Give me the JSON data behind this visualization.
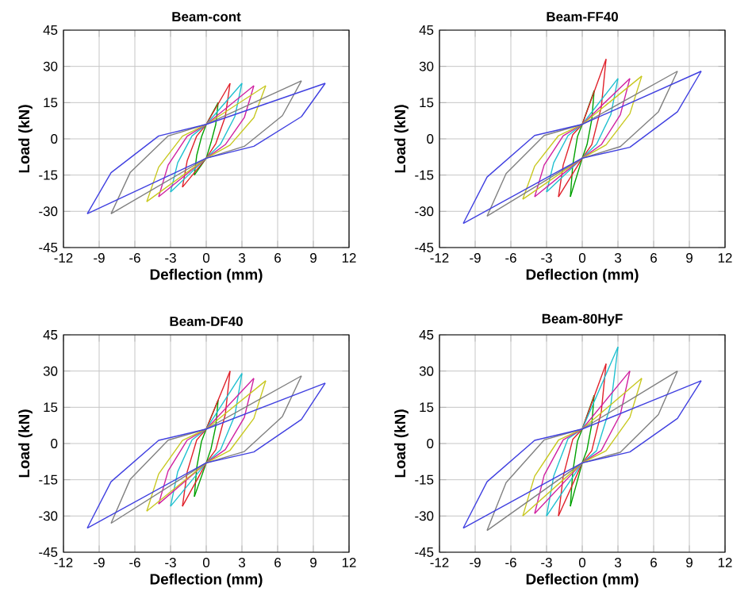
{
  "chart_data": [
    {
      "type": "line",
      "title": "Beam-cont",
      "xlabel": "Deflection (mm)",
      "ylabel": "Load (kN)",
      "xlim": [
        -12,
        12
      ],
      "ylim": [
        -45,
        45
      ],
      "xticks": [
        -12,
        -9,
        -6,
        -3,
        0,
        3,
        6,
        9,
        12
      ],
      "yticks": [
        -45,
        -30,
        -15,
        0,
        15,
        30,
        45
      ],
      "grid": true,
      "series": [
        {
          "color": "#00a000",
          "x": [
            -1,
            -0.8,
            -0.4,
            0,
            1
          ],
          "values": [
            -15,
            -6.8,
            0.8,
            6,
            15
          ]
        },
        {
          "color": "#00a000",
          "x": [
            -1,
            0,
            0.4,
            0.8,
            1
          ],
          "values": [
            -15,
            -8,
            -1.5,
            6,
            15
          ]
        },
        {
          "color": "#e0202a",
          "x": [
            -2,
            -1.6,
            -0.8,
            0,
            2
          ],
          "values": [
            -20,
            -9,
            1.2,
            6,
            23
          ]
        },
        {
          "color": "#e0202a",
          "x": [
            -2,
            0,
            0.8,
            1.6,
            2
          ],
          "values": [
            -20,
            -8,
            -2,
            9.2,
            23
          ]
        },
        {
          "color": "#20c0d0",
          "x": [
            -3,
            -2.4,
            -1.2,
            0,
            3
          ],
          "values": [
            -22,
            -9.9,
            1.2,
            6,
            23
          ]
        },
        {
          "color": "#20c0d0",
          "x": [
            -3,
            0,
            1.2,
            2.4,
            3
          ],
          "values": [
            -22,
            -8,
            -2.2,
            9.2,
            23
          ]
        },
        {
          "color": "#d020a0",
          "x": [
            -4,
            -3.2,
            -1.6,
            0,
            4
          ],
          "values": [
            -24,
            -10.8,
            1.1,
            6,
            22
          ]
        },
        {
          "color": "#d020a0",
          "x": [
            -4,
            0,
            1.6,
            3.2,
            4
          ],
          "values": [
            -24,
            -8,
            -2.4,
            8.8,
            22
          ]
        },
        {
          "color": "#c8c820",
          "x": [
            -5,
            -4,
            -2,
            0,
            5
          ],
          "values": [
            -26,
            -11.7,
            1.1,
            6,
            22
          ]
        },
        {
          "color": "#c8c820",
          "x": [
            -5,
            0,
            2,
            4,
            5
          ],
          "values": [
            -26,
            -8,
            -2.6,
            8.8,
            22
          ]
        },
        {
          "color": "#808080",
          "x": [
            -8,
            -6.4,
            -3.2,
            0,
            8
          ],
          "values": [
            -31,
            -14,
            1.2,
            6,
            24
          ]
        },
        {
          "color": "#808080",
          "x": [
            -8,
            0,
            3.2,
            6.4,
            8
          ],
          "values": [
            -31,
            -8,
            -3.1,
            9.6,
            24
          ]
        },
        {
          "color": "#4040e0",
          "x": [
            -10,
            -8,
            -4,
            0,
            10
          ],
          "values": [
            -31,
            -14,
            1.2,
            6,
            23
          ]
        },
        {
          "color": "#4040e0",
          "x": [
            -10,
            0,
            4,
            8,
            10
          ],
          "values": [
            -31,
            -8,
            -3.1,
            9.2,
            23
          ]
        }
      ]
    },
    {
      "type": "line",
      "title": "Beam-FF40",
      "xlabel": "Deflection (mm)",
      "ylabel": "Load (kN)",
      "xlim": [
        -12,
        12
      ],
      "ylim": [
        -45,
        45
      ],
      "xticks": [
        -12,
        -9,
        -6,
        -3,
        0,
        3,
        6,
        9,
        12
      ],
      "yticks": [
        -45,
        -30,
        -15,
        0,
        15,
        30,
        45
      ],
      "grid": true,
      "series": [
        {
          "color": "#00a000",
          "x": [
            -1,
            -0.8,
            -0.4,
            0,
            1
          ],
          "values": [
            -24,
            -10.8,
            1,
            6,
            20
          ]
        },
        {
          "color": "#00a000",
          "x": [
            -1,
            0,
            0.4,
            0.8,
            1
          ],
          "values": [
            -24,
            -8,
            -2.4,
            8,
            20
          ]
        },
        {
          "color": "#e0202a",
          "x": [
            -2,
            -1.6,
            -0.8,
            0,
            2
          ],
          "values": [
            -24,
            -10.8,
            1.7,
            6,
            33
          ]
        },
        {
          "color": "#e0202a",
          "x": [
            -2,
            0,
            0.8,
            1.6,
            2
          ],
          "values": [
            -24,
            -8,
            -2.4,
            13.2,
            33
          ]
        },
        {
          "color": "#20c0d0",
          "x": [
            -3,
            -2.4,
            -1.2,
            0,
            3
          ],
          "values": [
            -22,
            -9.9,
            1.3,
            6,
            25
          ]
        },
        {
          "color": "#20c0d0",
          "x": [
            -3,
            0,
            1.2,
            2.4,
            3
          ],
          "values": [
            -22,
            -8,
            -2.2,
            10,
            25
          ]
        },
        {
          "color": "#d020a0",
          "x": [
            -4,
            -3.2,
            -1.6,
            0,
            4
          ],
          "values": [
            -24,
            -10.8,
            1.3,
            6,
            25
          ]
        },
        {
          "color": "#d020a0",
          "x": [
            -4,
            0,
            1.6,
            3.2,
            4
          ],
          "values": [
            -24,
            -8,
            -2.4,
            10,
            25
          ]
        },
        {
          "color": "#c8c820",
          "x": [
            -5,
            -4,
            -2,
            0,
            5
          ],
          "values": [
            -25,
            -11.3,
            1.3,
            6,
            26
          ]
        },
        {
          "color": "#c8c820",
          "x": [
            -5,
            0,
            2,
            4,
            5
          ],
          "values": [
            -25,
            -8,
            -2.5,
            10.4,
            26
          ]
        },
        {
          "color": "#808080",
          "x": [
            -8,
            -6.4,
            -3.2,
            0,
            8
          ],
          "values": [
            -32,
            -14.4,
            1.4,
            6,
            28
          ]
        },
        {
          "color": "#808080",
          "x": [
            -8,
            0,
            3.2,
            6.4,
            8
          ],
          "values": [
            -32,
            -8,
            -3.2,
            11.2,
            28
          ]
        },
        {
          "color": "#4040e0",
          "x": [
            -10,
            -8,
            -4,
            0,
            10
          ],
          "values": [
            -35,
            -15.8,
            1.4,
            6,
            28
          ]
        },
        {
          "color": "#4040e0",
          "x": [
            -10,
            0,
            4,
            8,
            10
          ],
          "values": [
            -35,
            -8,
            -3.5,
            11.2,
            28
          ]
        }
      ]
    },
    {
      "type": "line",
      "title": "Beam-DF40",
      "xlabel": "Deflection (mm)",
      "ylabel": "Load (kN)",
      "xlim": [
        -12,
        12
      ],
      "ylim": [
        -45,
        45
      ],
      "xticks": [
        -12,
        -9,
        -6,
        -3,
        0,
        3,
        6,
        9,
        12
      ],
      "yticks": [
        -45,
        -30,
        -15,
        0,
        15,
        30,
        45
      ],
      "grid": true,
      "series": [
        {
          "color": "#00a000",
          "x": [
            -1,
            -0.8,
            -0.4,
            0,
            1
          ],
          "values": [
            -22,
            -9.9,
            0.9,
            6,
            18
          ]
        },
        {
          "color": "#00a000",
          "x": [
            -1,
            0,
            0.4,
            0.8,
            1
          ],
          "values": [
            -22,
            -8,
            -2.2,
            7.2,
            18
          ]
        },
        {
          "color": "#e0202a",
          "x": [
            -2,
            -1.6,
            -0.8,
            0,
            2
          ],
          "values": [
            -26,
            -11.7,
            1.5,
            6,
            30
          ]
        },
        {
          "color": "#e0202a",
          "x": [
            -2,
            0,
            0.8,
            1.6,
            2
          ],
          "values": [
            -26,
            -8,
            -2.6,
            12,
            30
          ]
        },
        {
          "color": "#20c0d0",
          "x": [
            -3,
            -2.4,
            -1.2,
            0,
            3
          ],
          "values": [
            -26,
            -11.7,
            1.5,
            6,
            29
          ]
        },
        {
          "color": "#20c0d0",
          "x": [
            -3,
            0,
            1.2,
            2.4,
            3
          ],
          "values": [
            -26,
            -8,
            -2.6,
            11.6,
            29
          ]
        },
        {
          "color": "#d020a0",
          "x": [
            -4,
            -3.2,
            -1.6,
            0,
            4
          ],
          "values": [
            -25,
            -11.3,
            1.4,
            6,
            27
          ]
        },
        {
          "color": "#d020a0",
          "x": [
            -4,
            0,
            1.6,
            3.2,
            4
          ],
          "values": [
            -25,
            -8,
            -2.5,
            10.8,
            27
          ]
        },
        {
          "color": "#c8c820",
          "x": [
            -5,
            -4,
            -2,
            0,
            5
          ],
          "values": [
            -28,
            -12.6,
            1.3,
            6,
            26
          ]
        },
        {
          "color": "#c8c820",
          "x": [
            -5,
            0,
            2,
            4,
            5
          ],
          "values": [
            -28,
            -8,
            -2.8,
            10.4,
            26
          ]
        },
        {
          "color": "#808080",
          "x": [
            -8,
            -6.4,
            -3.2,
            0,
            8
          ],
          "values": [
            -33,
            -14.9,
            1.4,
            6,
            28
          ]
        },
        {
          "color": "#808080",
          "x": [
            -8,
            0,
            3.2,
            6.4,
            8
          ],
          "values": [
            -33,
            -8,
            -3.3,
            11.2,
            28
          ]
        },
        {
          "color": "#4040e0",
          "x": [
            -10,
            -8,
            -4,
            0,
            10
          ],
          "values": [
            -35,
            -15.8,
            1.3,
            6,
            25
          ]
        },
        {
          "color": "#4040e0",
          "x": [
            -10,
            0,
            4,
            8,
            10
          ],
          "values": [
            -35,
            -8,
            -3.5,
            10,
            25
          ]
        }
      ]
    },
    {
      "type": "line",
      "title": "Beam-80HyF",
      "xlabel": "Deflection (mm)",
      "ylabel": "Load (kN)",
      "xlim": [
        -12,
        12
      ],
      "ylim": [
        -45,
        45
      ],
      "xticks": [
        -12,
        -9,
        -6,
        -3,
        0,
        3,
        6,
        9,
        12
      ],
      "yticks": [
        -45,
        -30,
        -15,
        0,
        15,
        30,
        45
      ],
      "grid": true,
      "series": [
        {
          "color": "#00a000",
          "x": [
            -1,
            -0.8,
            -0.4,
            0,
            1
          ],
          "values": [
            -26,
            -11.7,
            1,
            6,
            20
          ]
        },
        {
          "color": "#00a000",
          "x": [
            -1,
            0,
            0.4,
            0.8,
            1
          ],
          "values": [
            -26,
            -8,
            -2.6,
            8,
            20
          ]
        },
        {
          "color": "#e0202a",
          "x": [
            -2,
            -1.6,
            -0.8,
            0,
            2
          ],
          "values": [
            -30,
            -13.5,
            1.7,
            6,
            33
          ]
        },
        {
          "color": "#e0202a",
          "x": [
            -2,
            0,
            0.8,
            1.6,
            2
          ],
          "values": [
            -30,
            -8,
            -3,
            13.2,
            33
          ]
        },
        {
          "color": "#20c0d0",
          "x": [
            -3,
            -2.4,
            -1.2,
            0,
            3
          ],
          "values": [
            -30,
            -13.5,
            2,
            6,
            40
          ]
        },
        {
          "color": "#20c0d0",
          "x": [
            -3,
            0,
            1.2,
            2.4,
            3
          ],
          "values": [
            -30,
            -8,
            -3,
            16,
            40
          ]
        },
        {
          "color": "#d020a0",
          "x": [
            -4,
            -3.2,
            -1.6,
            0,
            4
          ],
          "values": [
            -29,
            -13.1,
            1.5,
            6,
            30
          ]
        },
        {
          "color": "#d020a0",
          "x": [
            -4,
            0,
            1.6,
            3.2,
            4
          ],
          "values": [
            -29,
            -8,
            -2.9,
            12,
            30
          ]
        },
        {
          "color": "#c8c820",
          "x": [
            -5,
            -4,
            -2,
            0,
            5
          ],
          "values": [
            -30,
            -13.5,
            1.4,
            6,
            27
          ]
        },
        {
          "color": "#c8c820",
          "x": [
            -5,
            0,
            2,
            4,
            5
          ],
          "values": [
            -30,
            -8,
            -3,
            10.8,
            27
          ]
        },
        {
          "color": "#808080",
          "x": [
            -8,
            -6.4,
            -3.2,
            0,
            8
          ],
          "values": [
            -36,
            -16.2,
            1.5,
            6,
            30
          ]
        },
        {
          "color": "#808080",
          "x": [
            -8,
            0,
            3.2,
            6.4,
            8
          ],
          "values": [
            -36,
            -8,
            -3.6,
            12,
            30
          ]
        },
        {
          "color": "#4040e0",
          "x": [
            -10,
            -8,
            -4,
            0,
            10
          ],
          "values": [
            -35,
            -15.8,
            1.3,
            6,
            26
          ]
        },
        {
          "color": "#4040e0",
          "x": [
            -10,
            0,
            4,
            8,
            10
          ],
          "values": [
            -35,
            -8,
            -3.5,
            10.4,
            26
          ]
        }
      ]
    }
  ]
}
